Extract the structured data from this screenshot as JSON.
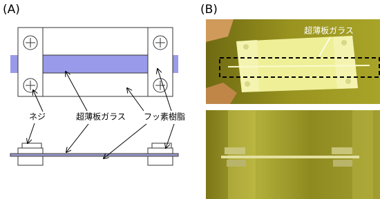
{
  "panel_a": {
    "label": "(A)",
    "labels": {
      "screw": "ネジ",
      "glass": "超薄板ガラス",
      "fluororesin": "フッ素樹脂"
    }
  },
  "panel_b": {
    "label": "(B)",
    "photo_label": "超薄板ガラス"
  }
}
